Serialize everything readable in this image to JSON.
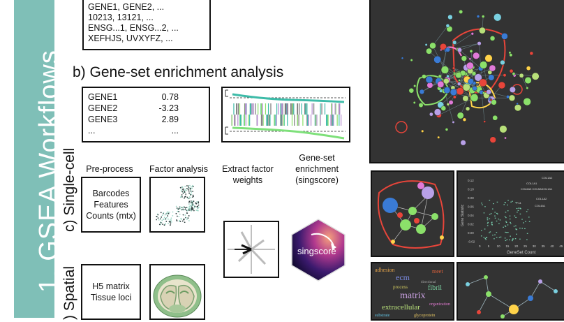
{
  "sidebar": {
    "title": "1. GSEA Workflows"
  },
  "section_labels": {
    "single_cell": "c) Single-cell",
    "spatial": ") Spatial"
  },
  "id_box": {
    "lines": [
      "GENE1, GENE2, ...",
      "10213, 13121, ...",
      "ENSG...1, ENSG...2, ...",
      "XEFHJS, UVXYFZ, ..."
    ]
  },
  "gsea": {
    "heading": "b) Gene-set enrichment analysis",
    "genes": [
      {
        "name": "GENE1",
        "value": "0.78"
      },
      {
        "name": "GENE2",
        "value": "-3.23"
      },
      {
        "name": "GENE3",
        "value": "2.89"
      },
      {
        "name": "...",
        "value": "..."
      }
    ]
  },
  "columns": {
    "preprocess": "Pre-process",
    "factor": "Factor analysis",
    "extract": [
      "Extract factor",
      "weights"
    ],
    "enrichment": [
      "Gene-set",
      "enrichment",
      "(singscore)"
    ]
  },
  "single_cell_box": {
    "lines": [
      "Barcodes",
      "Features",
      "Counts (mtx)"
    ]
  },
  "spatial_box": {
    "lines": [
      "H5 matrix",
      "Tissue loci"
    ]
  },
  "singscore_logo": {
    "text": "singscore"
  },
  "scatter_panel": {
    "ylabel": "Gene Statistic",
    "xlabel": "GeneSet Count",
    "y_ticks": [
      "0.12",
      "0.10",
      "0.08",
      "0.06",
      "0.04",
      "0.02",
      "0.00",
      "-0.02"
    ],
    "x_ticks": [
      "0",
      "5",
      "10",
      "15",
      "20",
      "25",
      "30",
      "35",
      "40",
      "45"
    ],
    "point_labels": [
      "COL1A2",
      "COL1A1",
      "COL6A3 COL5A1",
      "COL1A1",
      "COL1A2",
      "Fn1",
      "COL4A1"
    ]
  },
  "word_cloud": {
    "words": [
      "adhesion",
      "ecm",
      "meet",
      "process",
      "matrix",
      "fibril",
      "extracellular",
      "directional",
      "organization",
      "substrate",
      "glycoprotein"
    ]
  },
  "colors": {
    "sidebar": "#7fbfb7",
    "panel_bg": "#333333",
    "accent_green": "#8be06a",
    "loop_red": "#e8453a"
  }
}
